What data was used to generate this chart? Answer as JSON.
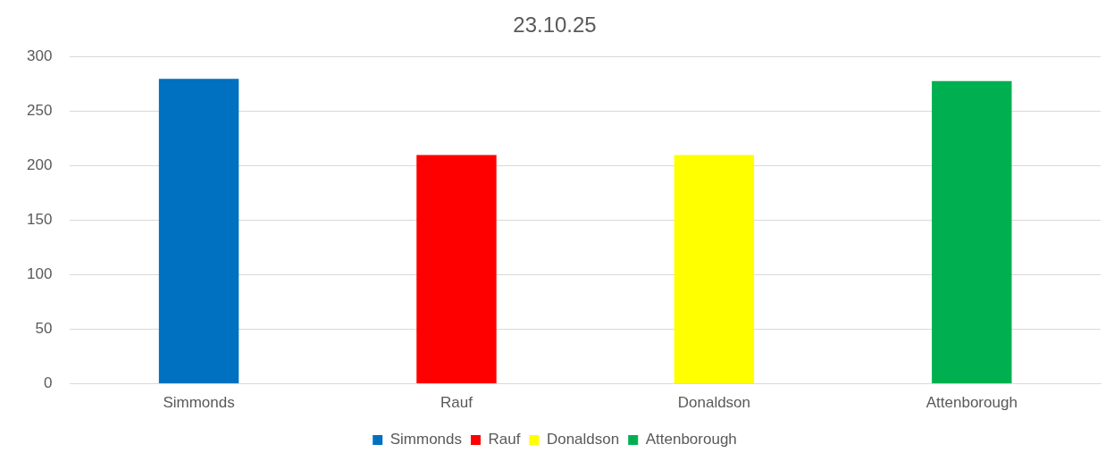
{
  "chart_data": {
    "type": "bar",
    "title": "23.10.25",
    "categories": [
      "Simmonds",
      "Rauf",
      "Donaldson",
      "Attenborough"
    ],
    "series": [
      {
        "name": "Simmonds",
        "color": "#0070c0",
        "values": [
          280,
          null,
          null,
          null
        ]
      },
      {
        "name": "Rauf",
        "color": "#ff0000",
        "values": [
          null,
          210,
          null,
          null
        ]
      },
      {
        "name": "Donaldson",
        "color": "#ffff00",
        "values": [
          null,
          null,
          210,
          null
        ]
      },
      {
        "name": "Attenborough",
        "color": "#00b050",
        "values": [
          null,
          null,
          null,
          278
        ]
      }
    ],
    "ylim": [
      0,
      300
    ],
    "yticks": [
      0,
      50,
      100,
      150,
      200,
      250,
      300
    ],
    "grid": "y",
    "legend": "bottom"
  }
}
